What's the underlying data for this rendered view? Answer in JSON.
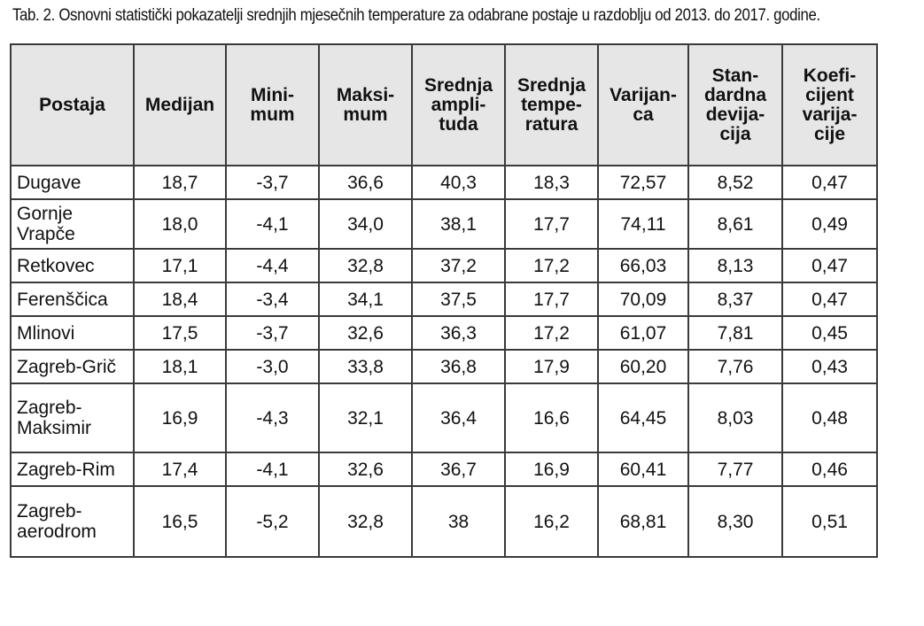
{
  "caption": "Tab. 2. Osnovni statistički pokazatelji srednjih mjesečnih temperature za odabrane postaje u razdoblju od 2013. do 2017. godine.",
  "table": {
    "headers": [
      [
        "Postaja"
      ],
      [
        "Medijan"
      ],
      [
        "Mini-",
        "mum"
      ],
      [
        "Maksi-",
        "mum"
      ],
      [
        "Srednja",
        "ampli-",
        "tuda"
      ],
      [
        "Srednja",
        "tempe-",
        "ratura"
      ],
      [
        "Varijan-",
        "ca"
      ],
      [
        "Stan-",
        "dardna",
        "devija-",
        "cija"
      ],
      [
        "Koefi-",
        "cijent",
        "varija-",
        "cije"
      ]
    ],
    "rows": [
      {
        "station": [
          "Dugave"
        ],
        "values": [
          "18,7",
          "-3,7",
          "36,6",
          "40,3",
          "18,3",
          "72,57",
          "8,52",
          "0,47"
        ]
      },
      {
        "station": [
          "Gornje",
          "Vrapče"
        ],
        "values": [
          "18,0",
          "-4,1",
          "34,0",
          "38,1",
          "17,7",
          "74,11",
          "8,61",
          "0,49"
        ]
      },
      {
        "station": [
          "Retkovec"
        ],
        "values": [
          "17,1",
          "-4,4",
          "32,8",
          "37,2",
          "17,2",
          "66,03",
          "8,13",
          "0,47"
        ]
      },
      {
        "station": [
          "Ferenščica"
        ],
        "values": [
          "18,4",
          "-3,4",
          "34,1",
          "37,5",
          "17,7",
          "70,09",
          "8,37",
          "0,47"
        ]
      },
      {
        "station": [
          "Mlinovi"
        ],
        "values": [
          "17,5",
          "-3,7",
          "32,6",
          "36,3",
          "17,2",
          "61,07",
          "7,81",
          "0,45"
        ]
      },
      {
        "station": [
          "Zagreb-Grič"
        ],
        "values": [
          "18,1",
          "-3,0",
          "33,8",
          "36,8",
          "17,9",
          "60,20",
          "7,76",
          "0,43"
        ]
      },
      {
        "station": [
          "Zagreb-",
          "Maksimir"
        ],
        "values": [
          "16,9",
          "-4,3",
          "32,1",
          "36,4",
          "16,6",
          "64,45",
          "8,03",
          "0,48"
        ]
      },
      {
        "station": [
          "Zagreb-Rim"
        ],
        "values": [
          "17,4",
          "-4,1",
          "32,6",
          "36,7",
          "16,9",
          "60,41",
          "7,77",
          "0,46"
        ]
      },
      {
        "station": [
          "Zagreb-",
          "aerodrom"
        ],
        "values": [
          "16,5",
          "-5,2",
          "32,8",
          "38",
          "16,2",
          "68,81",
          "8,30",
          "0,51"
        ]
      }
    ]
  },
  "colors": {
    "header_background": "#e6e6e6",
    "border": "#3a3a3a",
    "text": "#111111"
  }
}
